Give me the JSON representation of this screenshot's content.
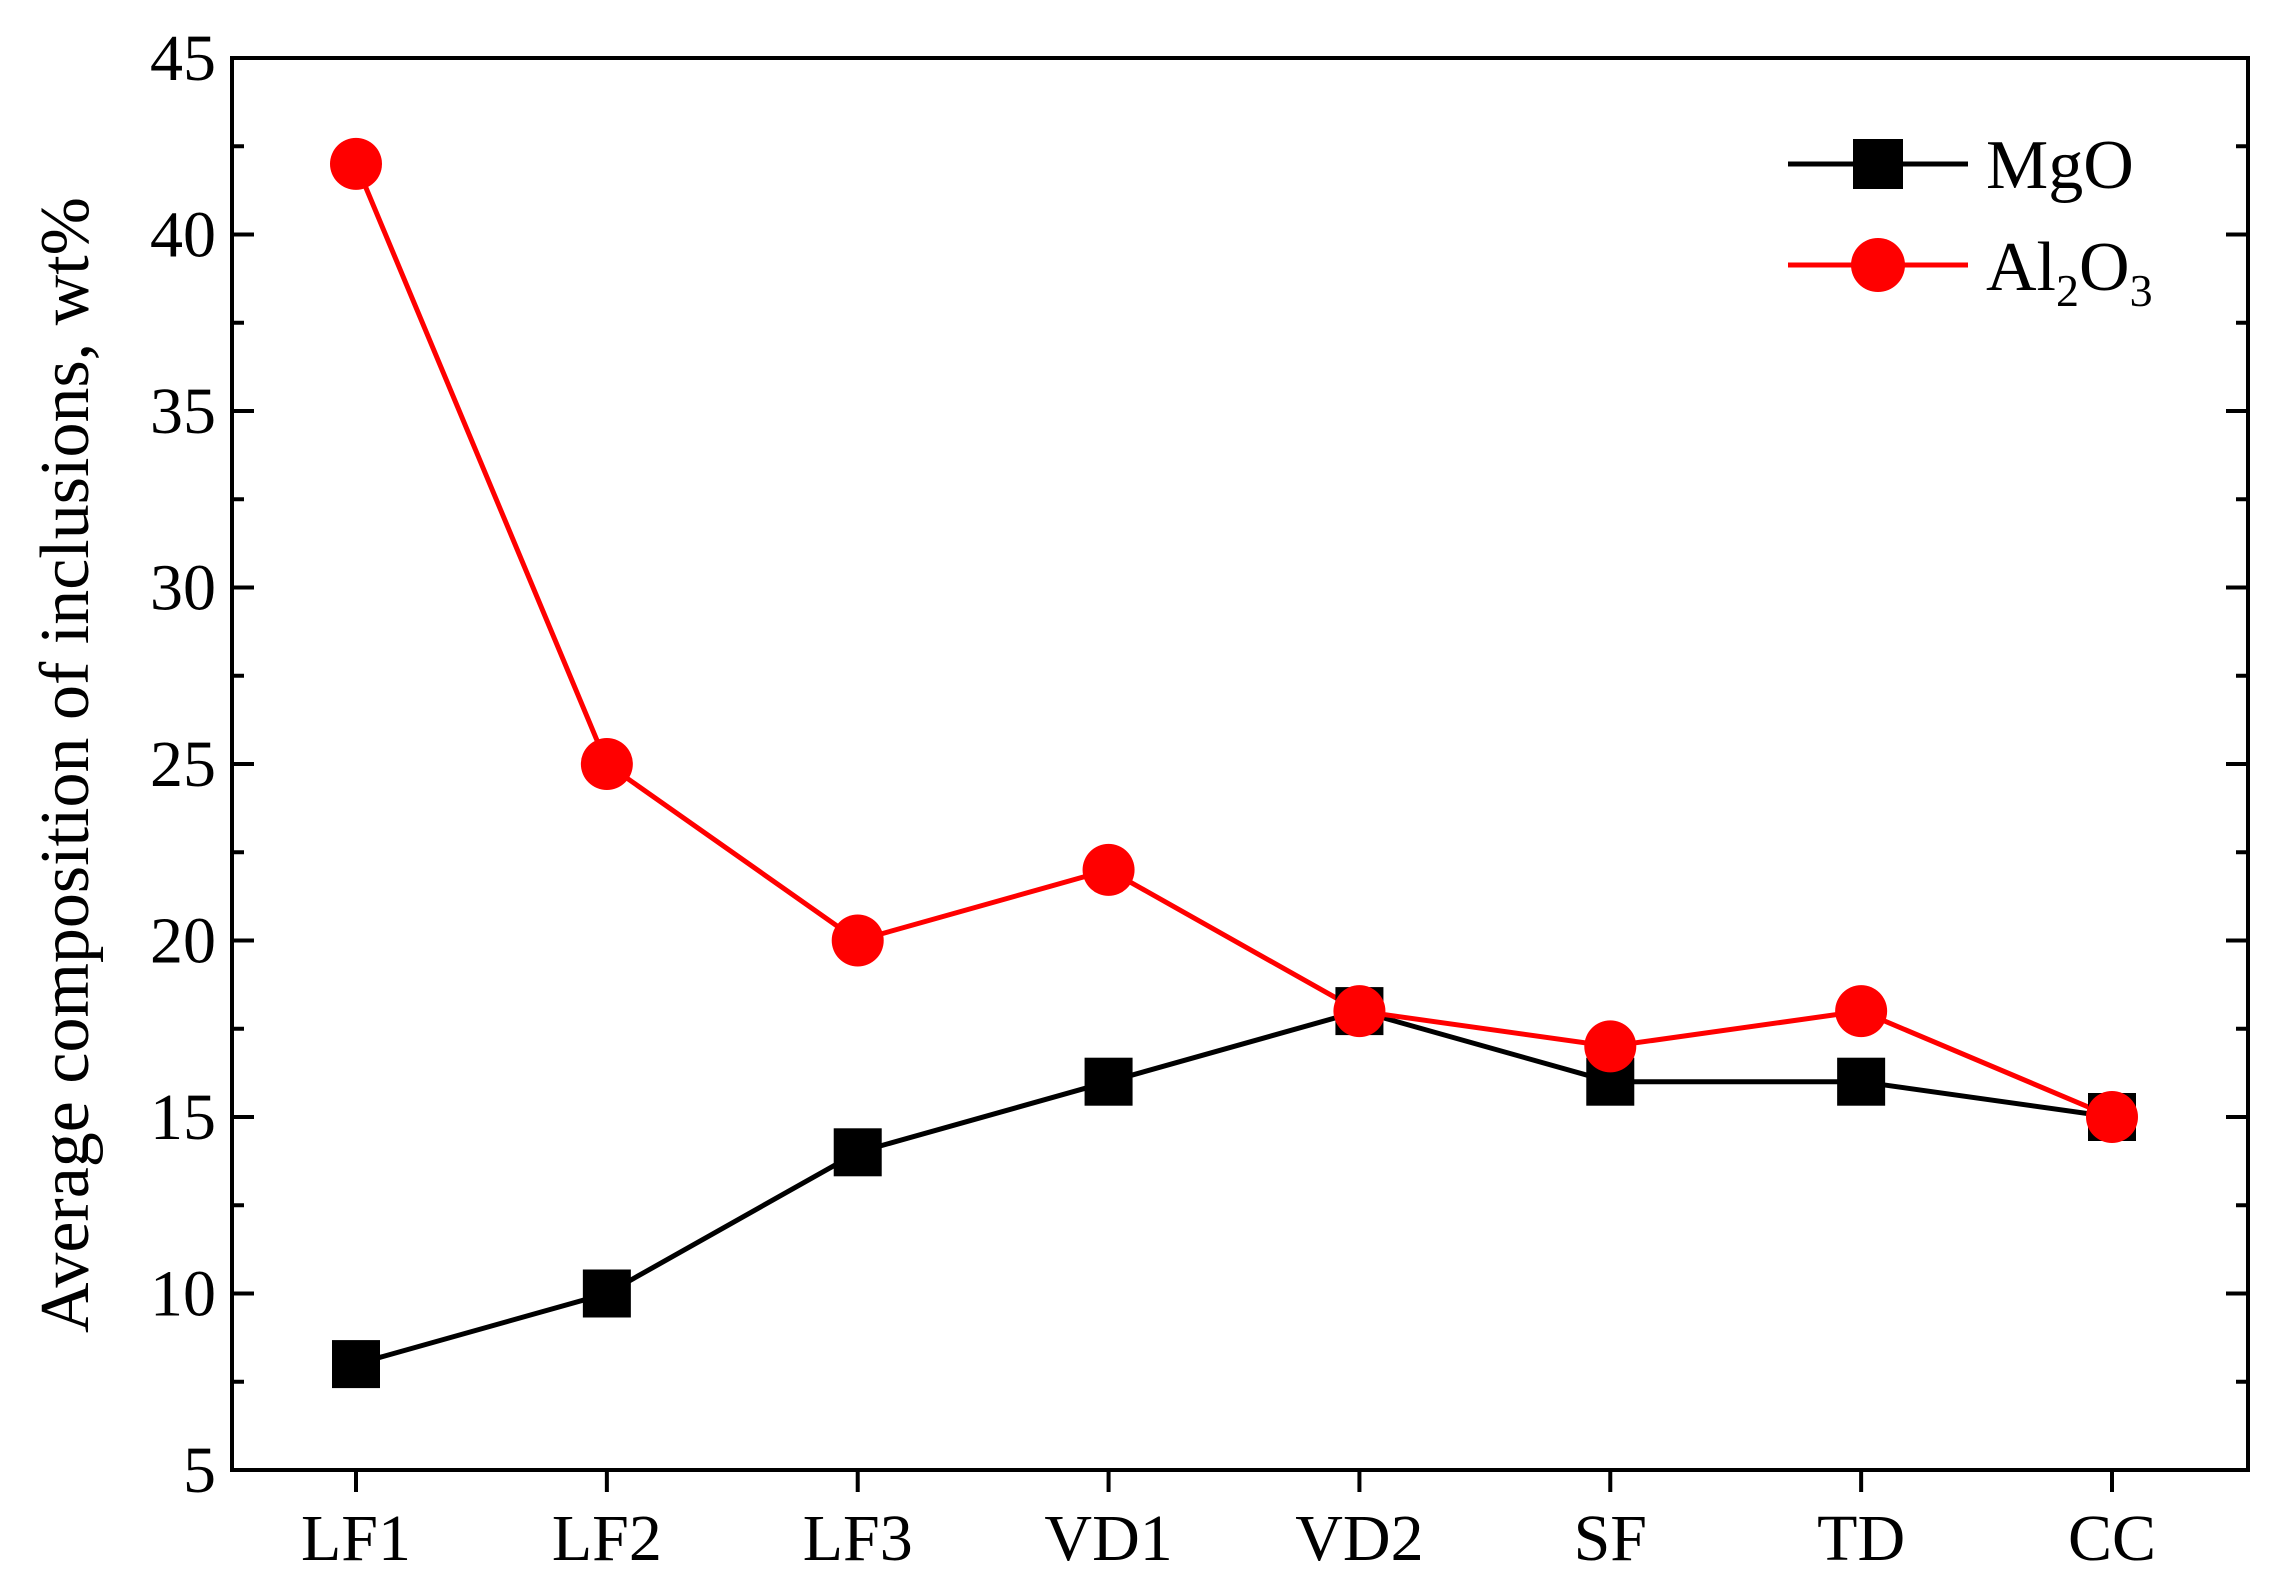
{
  "chart_data": {
    "type": "line",
    "categories": [
      "LF1",
      "LF2",
      "LF3",
      "VD1",
      "VD2",
      "SF",
      "TD",
      "CC"
    ],
    "series": [
      {
        "name": "MgO",
        "values": [
          8,
          10,
          14,
          16,
          18,
          16,
          16,
          15
        ],
        "color": "#000000",
        "marker": "square"
      },
      {
        "name": "Al2O3",
        "label_base": "Al",
        "label_sub1": "2",
        "label_mid": "O",
        "label_sub2": "3",
        "values": [
          42,
          25,
          20,
          22,
          18,
          17,
          18,
          15
        ],
        "color": "#ff0000",
        "marker": "circle"
      }
    ],
    "ylabel": "Average composition of inclusions, wt%",
    "xlabel": "",
    "ylim": [
      5,
      45
    ],
    "yticks": [
      "5",
      "10",
      "15",
      "20",
      "25",
      "30",
      "35",
      "40",
      "45"
    ],
    "legend_position": "top-right",
    "grid": false
  }
}
